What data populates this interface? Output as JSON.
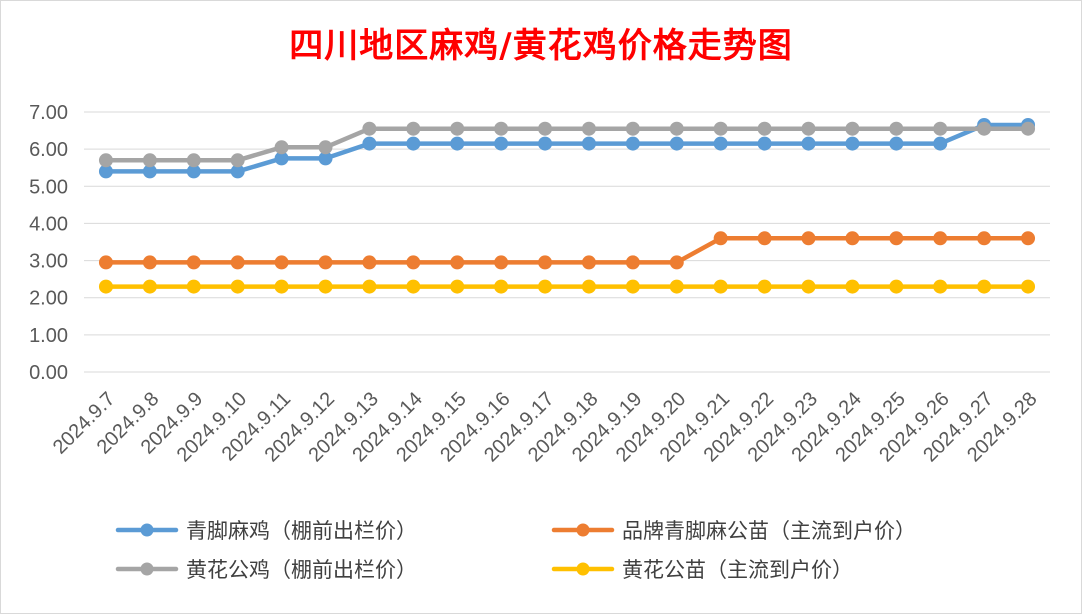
{
  "chart_data": {
    "type": "line",
    "title": "四川地区麻鸡/黄花鸡价格走势图",
    "categories": [
      "2024.9.7",
      "2024.9.8",
      "2024.9.9",
      "2024.9.10",
      "2024.9.11",
      "2024.9.12",
      "2024.9.13",
      "2024.9.14",
      "2024.9.15",
      "2024.9.16",
      "2024.9.17",
      "2024.9.18",
      "2024.9.19",
      "2024.9.20",
      "2024.9.21",
      "2024.9.22",
      "2024.9.23",
      "2024.9.24",
      "2024.9.25",
      "2024.9.26",
      "2024.9.27",
      "2024.9.28"
    ],
    "yticks": [
      "0.00",
      "1.00",
      "2.00",
      "3.00",
      "4.00",
      "5.00",
      "6.00",
      "7.00"
    ],
    "ylim": [
      0,
      7
    ],
    "grid": true,
    "legend_position": "bottom",
    "series": [
      {
        "name": "青脚麻鸡（棚前出栏价）",
        "color": "#5b9bd5",
        "values": [
          5.4,
          5.4,
          5.4,
          5.4,
          5.75,
          5.75,
          6.15,
          6.15,
          6.15,
          6.15,
          6.15,
          6.15,
          6.15,
          6.15,
          6.15,
          6.15,
          6.15,
          6.15,
          6.15,
          6.15,
          6.65,
          6.65
        ]
      },
      {
        "name": "品牌青脚麻公苗（主流到户价）",
        "color": "#ed7d31",
        "values": [
          2.95,
          2.95,
          2.95,
          2.95,
          2.95,
          2.95,
          2.95,
          2.95,
          2.95,
          2.95,
          2.95,
          2.95,
          2.95,
          2.95,
          3.6,
          3.6,
          3.6,
          3.6,
          3.6,
          3.6,
          3.6,
          3.6
        ]
      },
      {
        "name": "黄花公鸡（棚前出栏价）",
        "color": "#a5a5a5",
        "values": [
          5.7,
          5.7,
          5.7,
          5.7,
          6.05,
          6.05,
          6.55,
          6.55,
          6.55,
          6.55,
          6.55,
          6.55,
          6.55,
          6.55,
          6.55,
          6.55,
          6.55,
          6.55,
          6.55,
          6.55,
          6.55,
          6.55
        ]
      },
      {
        "name": "黄花公苗（主流到户价）",
        "color": "#ffc000",
        "values": [
          2.3,
          2.3,
          2.3,
          2.3,
          2.3,
          2.3,
          2.3,
          2.3,
          2.3,
          2.3,
          2.3,
          2.3,
          2.3,
          2.3,
          2.3,
          2.3,
          2.3,
          2.3,
          2.3,
          2.3,
          2.3,
          2.3
        ]
      }
    ]
  }
}
